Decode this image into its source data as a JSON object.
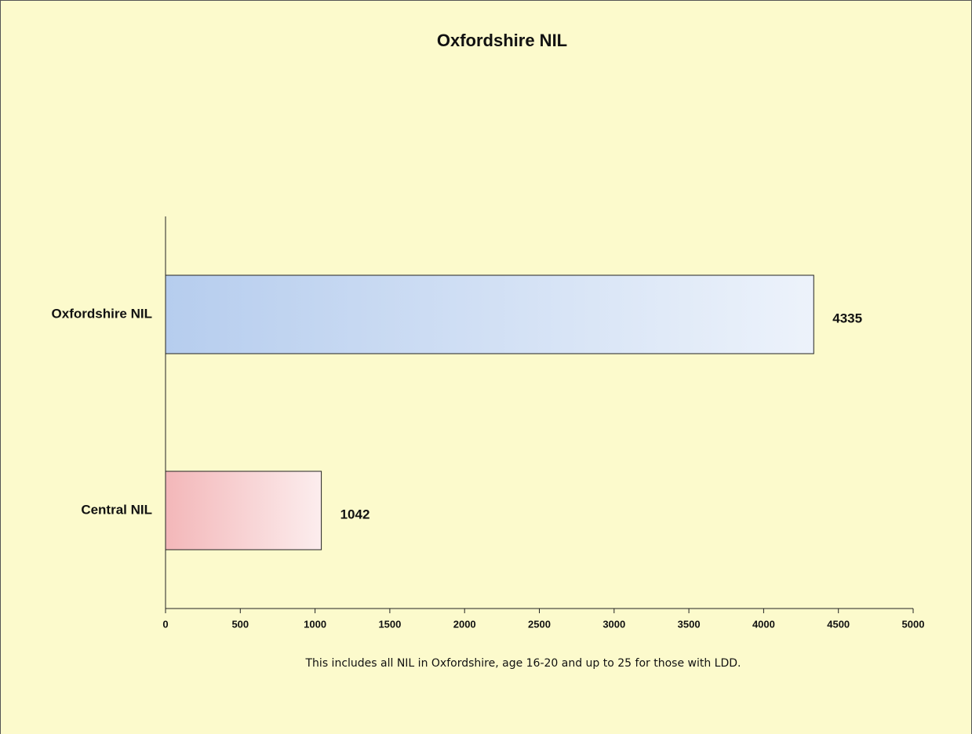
{
  "chart_data": {
    "type": "barh",
    "title": "Oxfordshire NIL",
    "categories": [
      "Oxfordshire NIL",
      "Central NIL"
    ],
    "values": [
      4335,
      1042
    ],
    "colors": [
      "#b6cdee",
      "#f3b7b9"
    ],
    "xlim": [
      0,
      5000
    ],
    "xticks": [
      0,
      500,
      1000,
      1500,
      2000,
      2500,
      3000,
      3500,
      4000,
      4500,
      5000
    ],
    "grid": false,
    "note": "This includes all NIL in Oxfordshire, age 16-20 and up to 25 for those with LDD."
  }
}
